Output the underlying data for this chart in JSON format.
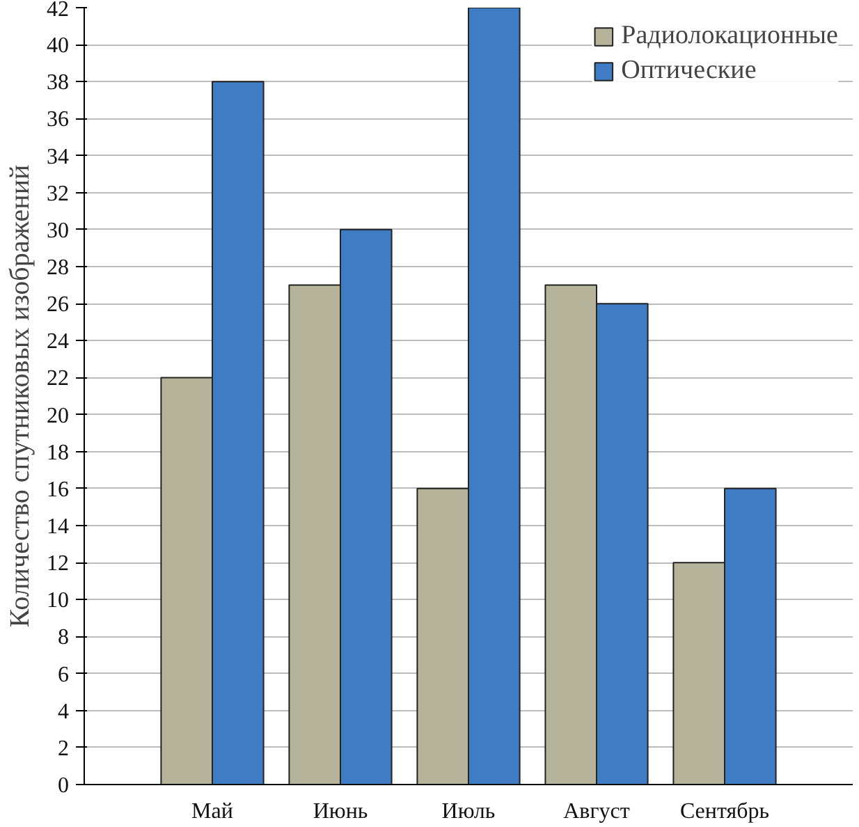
{
  "chart_data": {
    "type": "bar",
    "ylabel": "Количество спутниковых изображений",
    "categories": [
      "Май",
      "Июнь",
      "Июль",
      "Август",
      "Сентябрь"
    ],
    "series": [
      {
        "name": "Радиолокационные",
        "color": "#b5b49a",
        "values": [
          22,
          27,
          16,
          27,
          12
        ]
      },
      {
        "name": "Оптические",
        "color": "#3f7cc4",
        "values": [
          38,
          30,
          42,
          26,
          16
        ]
      }
    ],
    "ylim": [
      0,
      42
    ],
    "yticks": [
      0,
      2,
      4,
      6,
      8,
      10,
      12,
      14,
      16,
      18,
      20,
      22,
      24,
      26,
      28,
      30,
      32,
      34,
      36,
      38,
      40,
      42
    ],
    "grid": "y",
    "legend": "top right"
  }
}
